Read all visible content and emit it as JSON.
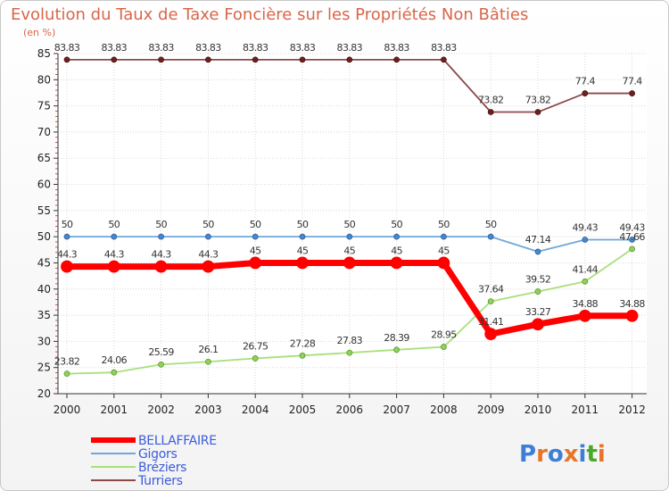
{
  "chart_data": {
    "type": "line",
    "title": "Evolution du Taux de Taxe Foncière sur les Propriétés Non Bâties",
    "subtitle": "(en %)",
    "xlabel": "",
    "ylabel": "",
    "ylim": [
      20,
      85
    ],
    "yticks": [
      20,
      25,
      30,
      35,
      40,
      45,
      50,
      55,
      60,
      65,
      70,
      75,
      80,
      85
    ],
    "x": [
      "2000",
      "2001",
      "2002",
      "2003",
      "2004",
      "2005",
      "2006",
      "2007",
      "2008",
      "2009",
      "2010",
      "2011",
      "2012"
    ],
    "series": [
      {
        "name": "BELLAFFAIRE",
        "color": "#ff0000",
        "values": [
          44.3,
          44.3,
          44.3,
          44.3,
          45,
          45,
          45,
          45,
          45,
          31.41,
          33.27,
          34.88,
          34.88
        ],
        "labels": [
          "44.3",
          "44.3",
          "44.3",
          "44.3",
          "45",
          "45",
          "45",
          "45",
          "45",
          "31.41",
          "33.27",
          "34.88",
          "34.88"
        ]
      },
      {
        "name": "Gigors",
        "color": "#6fa8dc",
        "values": [
          50,
          50,
          50,
          50,
          50,
          50,
          50,
          50,
          50,
          50,
          47.14,
          49.43,
          49.43
        ],
        "labels": [
          "50",
          "50",
          "50",
          "50",
          "50",
          "50",
          "50",
          "50",
          "50",
          "50",
          "47.14",
          "49.43",
          "49.43"
        ]
      },
      {
        "name": "Bréziers",
        "color": "#a8e07a",
        "values": [
          23.82,
          24.06,
          25.59,
          26.1,
          26.75,
          27.28,
          27.83,
          28.39,
          28.95,
          37.64,
          39.52,
          41.44,
          47.66
        ],
        "labels": [
          "23.82",
          "24.06",
          "25.59",
          "26.1",
          "26.75",
          "27.28",
          "27.83",
          "28.39",
          "28.95",
          "37.64",
          "39.52",
          "41.44",
          "47.66"
        ]
      },
      {
        "name": "Turriers",
        "color": "#8b4a4a",
        "values": [
          83.83,
          83.83,
          83.83,
          83.83,
          83.83,
          83.83,
          83.83,
          83.83,
          83.83,
          73.82,
          73.82,
          77.4,
          77.4
        ],
        "labels": [
          "83.83",
          "83.83",
          "83.83",
          "83.83",
          "83.83",
          "83.83",
          "83.83",
          "83.83",
          "83.83",
          "73.82",
          "73.82",
          "77.4",
          "77.4"
        ]
      }
    ],
    "legend": [
      "BELLAFFAIRE",
      "Gigors",
      "Bréziers",
      "Turriers"
    ],
    "legend_position": "bottom-left",
    "grid": true
  },
  "logo": {
    "text": "Proxiti"
  }
}
